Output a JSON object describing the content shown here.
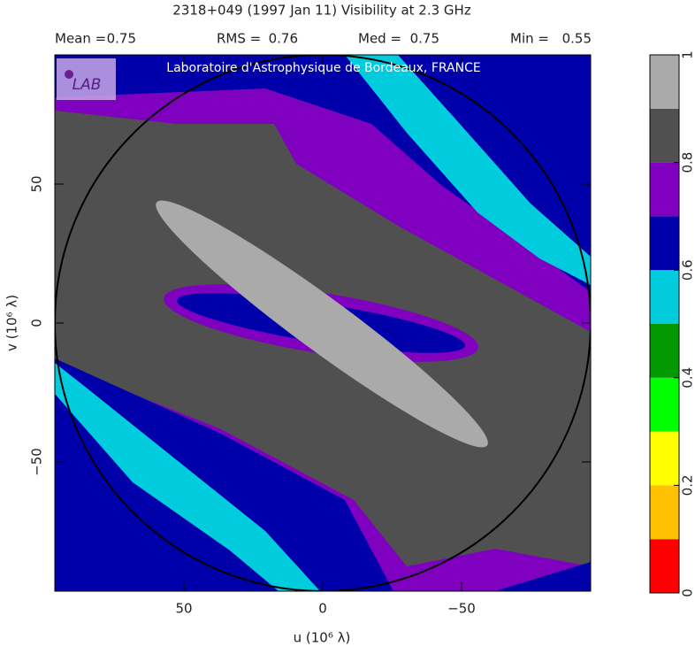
{
  "chart_data": {
    "type": "contour",
    "title": "2318+049  (1997 Jan 11)   Visibility at  2.3 GHz",
    "stats": [
      {
        "label": "Mean =",
        "value": 0.75
      },
      {
        "label": "RMS =",
        "value": 0.76
      },
      {
        "label": "Med =",
        "value": 0.75
      },
      {
        "label": "Min =",
        "value": 0.55
      }
    ],
    "watermark": "Laboratoire d'Astrophysique de Bordeaux, FRANCE",
    "logo_text": "LAB",
    "x_label": "u  (10⁶ λ)",
    "y_label": "v  (10⁶ λ)",
    "xlim": [
      96.5,
      -96.5
    ],
    "xticks": [
      50,
      0,
      {
        "value": -50,
        "label": "−50"
      }
    ],
    "ylim": [
      -96.5,
      96.5
    ],
    "yticks": [
      {
        "value": -50,
        "label": "−50"
      },
      0,
      50
    ],
    "colorbar": {
      "levels": [
        0,
        0.1,
        0.2,
        0.3,
        0.4,
        0.5,
        0.6,
        0.7,
        0.8,
        0.9,
        1
      ],
      "colors": [
        "#ff0000",
        "#ffc000",
        "#ffff00",
        "#00ff00",
        "#009900",
        "#00ccdd",
        "#0000aa",
        "#7f00bf",
        "#505050",
        "#aaaaaa"
      ],
      "ticks": [
        0,
        0.2,
        0.4,
        0.6,
        0.8,
        1
      ]
    }
  }
}
